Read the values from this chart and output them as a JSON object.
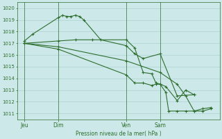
{
  "bg_color": "#cce8e8",
  "grid_color_major": "#a8cccc",
  "grid_color_minor": "#c0e0e0",
  "line_color": "#2d6e2d",
  "xlabel": "Pression niveau de la mer( hPa )",
  "ylim": [
    1010.5,
    1020.5
  ],
  "yticks": [
    1011,
    1012,
    1013,
    1014,
    1015,
    1016,
    1017,
    1018,
    1019,
    1020
  ],
  "xtick_labels": [
    "Jeu",
    "Dim",
    "Ven",
    "Sam"
  ],
  "xtick_positions": [
    0,
    24,
    72,
    96
  ],
  "vlines": [
    0,
    24,
    72,
    96
  ],
  "xlim": [
    -5,
    138
  ],
  "series1": {
    "x": [
      0,
      6,
      24,
      27,
      30,
      33,
      36,
      39,
      42,
      54,
      72,
      78,
      84,
      96,
      108,
      120
    ],
    "y": [
      1017.2,
      1017.8,
      1019.2,
      1019.4,
      1019.3,
      1019.3,
      1019.4,
      1019.3,
      1019.0,
      1017.3,
      1016.8,
      1016.1,
      1015.7,
      1016.1,
      1012.5,
      1012.6
    ]
  },
  "series2": {
    "x": [
      0,
      24,
      36,
      48,
      72,
      78,
      84,
      90,
      93,
      96,
      100,
      108,
      114,
      120
    ],
    "y": [
      1017.0,
      1017.2,
      1017.3,
      1017.3,
      1017.3,
      1016.6,
      1014.5,
      1014.4,
      1013.6,
      1013.5,
      1013.3,
      1012.1,
      1013.0,
      1012.6
    ]
  },
  "series3": {
    "x": [
      0,
      24,
      72,
      96,
      108,
      114,
      120,
      126,
      132
    ],
    "y": [
      1017.0,
      1016.7,
      1015.5,
      1014.5,
      1013.5,
      1012.5,
      1011.2,
      1011.2,
      1011.4
    ]
  },
  "series4": {
    "x": [
      0,
      24,
      72,
      78,
      84,
      90,
      93,
      96,
      100,
      102,
      108,
      114,
      120,
      126,
      132
    ],
    "y": [
      1017.0,
      1016.5,
      1014.3,
      1013.6,
      1013.6,
      1013.4,
      1013.5,
      1013.5,
      1012.8,
      1011.2,
      1011.2,
      1011.2,
      1011.2,
      1011.4,
      1011.5
    ]
  }
}
